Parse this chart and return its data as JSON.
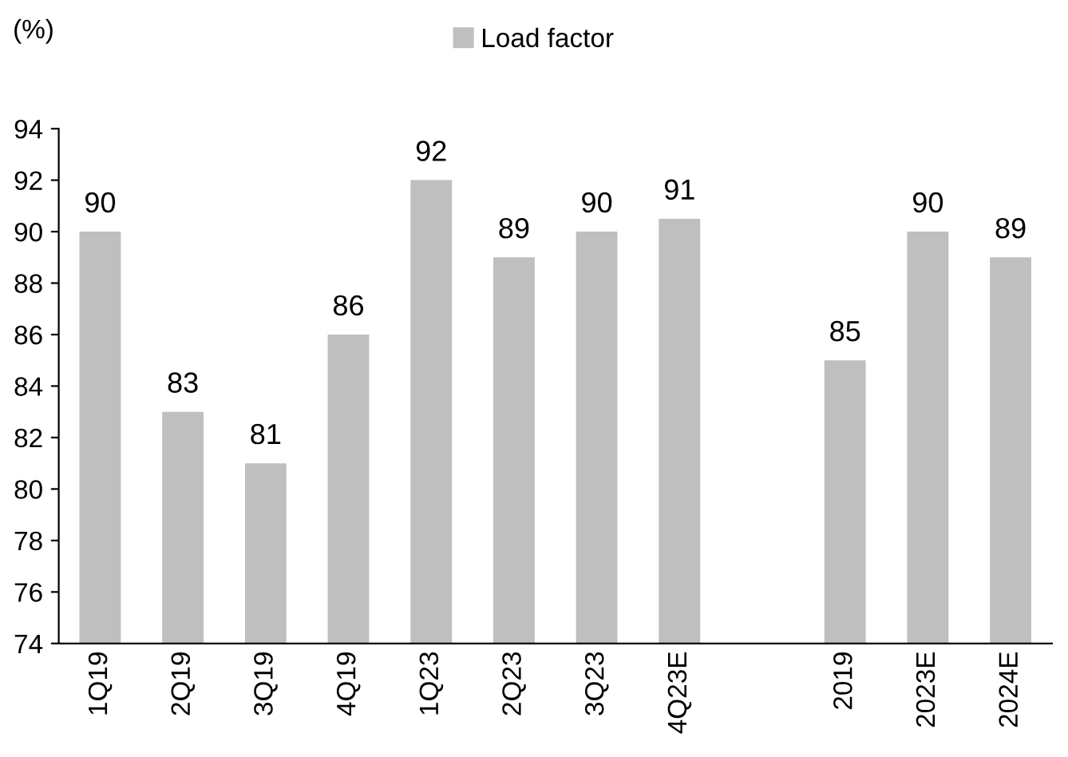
{
  "chart_data": {
    "type": "bar",
    "ylabel": "(%)",
    "categories": [
      "1Q19",
      "2Q19",
      "3Q19",
      "4Q19",
      "1Q23",
      "2Q23",
      "3Q23",
      "4Q23E",
      null,
      "2019",
      "2023E",
      "2024E"
    ],
    "series": [
      {
        "name": "Load factor",
        "color": "#bfbfbf",
        "values": [
          90,
          83,
          81,
          86,
          92,
          89,
          90,
          90.5,
          null,
          85,
          90,
          89
        ],
        "value_labels": [
          "90",
          "83",
          "81",
          "86",
          "92",
          "89",
          "90",
          "91",
          null,
          "85",
          "90",
          "89"
        ]
      }
    ],
    "ylim": [
      74,
      94
    ],
    "yticks": [
      74,
      76,
      78,
      80,
      82,
      84,
      86,
      88,
      90,
      92,
      94
    ],
    "grid": false,
    "legend": "top"
  }
}
